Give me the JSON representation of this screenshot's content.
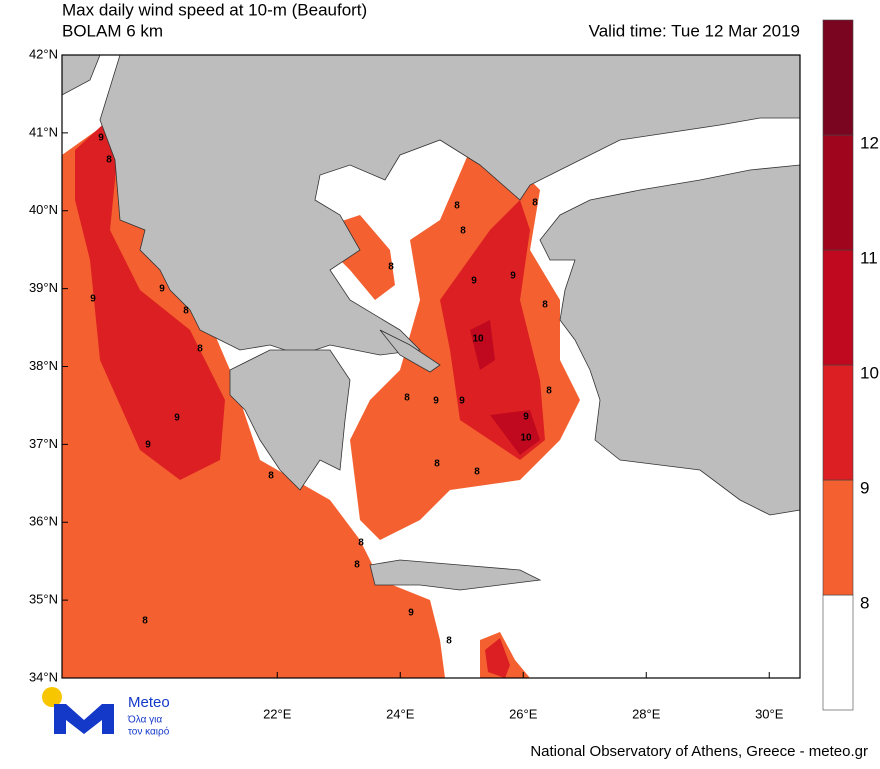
{
  "title": "Max daily wind speed at 10-m (Beaufort)",
  "subtitle": "BOLAM 6 km",
  "valid_time": "Valid time: Tue 12 Mar 2019",
  "xlim": [
    18.5,
    30.5
  ],
  "ylim": [
    34,
    42
  ],
  "lat_ticks": [
    {
      "value": 42,
      "label": "42°N"
    },
    {
      "value": 41,
      "label": "41°N"
    },
    {
      "value": 40,
      "label": "40°N"
    },
    {
      "value": 39,
      "label": "39°N"
    },
    {
      "value": 38,
      "label": "38°N"
    },
    {
      "value": 37,
      "label": "37°N"
    },
    {
      "value": 36,
      "label": "36°N"
    },
    {
      "value": 35,
      "label": "35°N"
    },
    {
      "value": 34,
      "label": "34°N"
    }
  ],
  "lon_ticks": [
    {
      "value": 22,
      "label": "22°E"
    },
    {
      "value": 24,
      "label": "24°E"
    },
    {
      "value": 26,
      "label": "26°E"
    },
    {
      "value": 28,
      "label": "28°E"
    },
    {
      "value": 30,
      "label": "30°E"
    }
  ],
  "colorbar": {
    "levels": [
      8,
      9,
      10,
      11,
      12
    ],
    "colors": [
      "#ffffff",
      "#f4602f",
      "#dc1f22",
      "#c0091e",
      "#a0051e",
      "#7a0521"
    ]
  },
  "contour_labels": [
    9,
    8,
    9,
    9,
    8,
    8,
    9,
    9,
    8,
    8,
    8,
    8,
    9,
    9,
    8,
    8,
    10,
    8,
    9,
    9,
    9,
    10,
    8,
    8,
    8,
    8,
    8,
    9,
    8,
    8
  ],
  "logo": {
    "name": "Meteo",
    "line1": "Όλα για",
    "line2": "τον καιρό"
  },
  "footer": "National Observatory of Athens, Greece - meteo.gr"
}
